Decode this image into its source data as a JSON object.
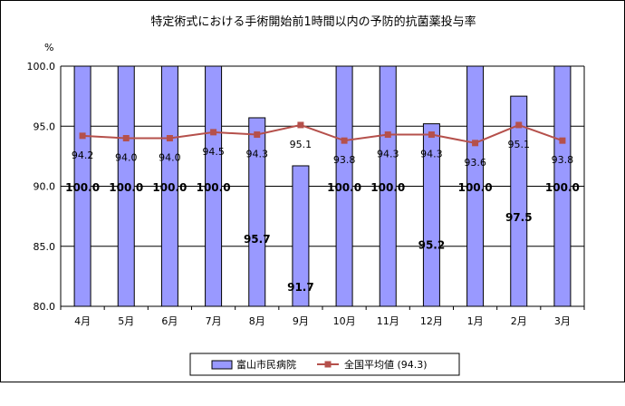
{
  "chart_data": {
    "type": "bar",
    "title": "特定術式における手術開始前1時間以内の予防的抗菌薬投与率",
    "ylabel": "%",
    "categories": [
      "4月",
      "5月",
      "6月",
      "7月",
      "8月",
      "9月",
      "10月",
      "11月",
      "12月",
      "1月",
      "2月",
      "3月"
    ],
    "ylim": [
      80.0,
      100.0
    ],
    "yticks": [
      "80.0",
      "85.0",
      "90.0",
      "95.0",
      "100.0"
    ],
    "grid": true,
    "legend_position": "bottom",
    "series": [
      {
        "name": "富山市民病院",
        "type": "bar",
        "color": "#9999ff",
        "values": [
          100.0,
          100.0,
          100.0,
          100.0,
          95.7,
          91.7,
          100.0,
          100.0,
          95.2,
          100.0,
          97.5,
          100.0
        ],
        "labels": [
          "100.0",
          "100.0",
          "100.0",
          "100.0",
          "95.7",
          "91.7",
          "100.0",
          "100.0",
          "95.2",
          "100.0",
          "97.5",
          "100.0"
        ]
      },
      {
        "name": "全国平均値 (94.3)",
        "type": "line",
        "color": "#b5504b",
        "values": [
          94.2,
          94.0,
          94.0,
          94.5,
          94.3,
          95.1,
          93.8,
          94.3,
          94.3,
          93.6,
          95.1,
          93.8
        ],
        "labels": [
          "94.2",
          "94.0",
          "94.0",
          "94.5",
          "94.3",
          "95.1",
          "93.8",
          "94.3",
          "94.3",
          "93.6",
          "95.1",
          "93.8"
        ]
      }
    ]
  }
}
